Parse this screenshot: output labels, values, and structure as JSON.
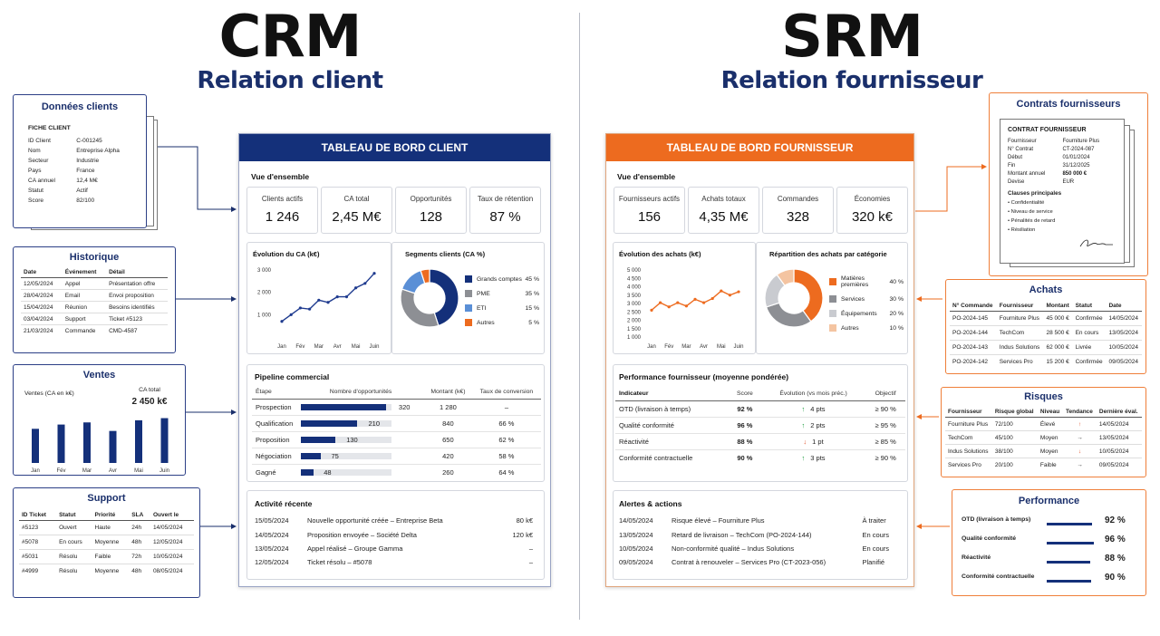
{
  "colors": {
    "navy": "#14307a",
    "orange": "#ed6b1f",
    "gray": "#8d8f94",
    "lightgray": "#c9cbd0",
    "lightblue": "#5a8fd6",
    "darkblue": "#1f3b8f",
    "green": "#1a9b3b",
    "red": "#e0522a"
  },
  "crm": {
    "title": "CRM",
    "subtitle": "Relation client",
    "donnees": {
      "title": "Données clients",
      "fiche_title": "FICHE CLIENT",
      "rows": [
        [
          "ID Client",
          "C-001245"
        ],
        [
          "Nom",
          "Entreprise Alpha"
        ],
        [
          "Secteur",
          "Industrie"
        ],
        [
          "Pays",
          "France"
        ],
        [
          "CA annuel",
          "12,4 M€"
        ],
        [
          "Statut",
          "Actif"
        ],
        [
          "Score",
          "82/100"
        ]
      ]
    },
    "historique": {
      "title": "Historique",
      "headers": [
        "Date",
        "Événement",
        "Détail"
      ],
      "rows": [
        [
          "12/05/2024",
          "Appel",
          "Présentation offre"
        ],
        [
          "28/04/2024",
          "Email",
          "Envoi proposition"
        ],
        [
          "15/04/2024",
          "Réunion",
          "Besoins identifiés"
        ],
        [
          "03/04/2024",
          "Support",
          "Ticket #5123"
        ],
        [
          "21/03/2024",
          "Commande",
          "CMD-4587"
        ]
      ]
    },
    "ventes": {
      "title": "Ventes",
      "ylabel": "Ventes (CA en k€)",
      "ca_label": "CA total",
      "ca_value": "2 450 k€"
    },
    "support": {
      "title": "Support",
      "headers": [
        "ID Ticket",
        "Statut",
        "Priorité",
        "SLA",
        "Ouvert le"
      ],
      "rows": [
        [
          "#5123",
          "Ouvert",
          "Haute",
          "24h",
          "14/05/2024"
        ],
        [
          "#5078",
          "En cours",
          "Moyenne",
          "48h",
          "12/05/2024"
        ],
        [
          "#5031",
          "Résolu",
          "Faible",
          "72h",
          "10/05/2024"
        ],
        [
          "#4999",
          "Résolu",
          "Moyenne",
          "48h",
          "08/05/2024"
        ]
      ]
    },
    "dashboard": {
      "title": "TABLEAU DE BORD CLIENT",
      "overview": "Vue d'ensemble",
      "kpis": [
        {
          "label": "Clients actifs",
          "value": "1 246"
        },
        {
          "label": "CA total",
          "value": "2,45 M€"
        },
        {
          "label": "Opportunités",
          "value": "128"
        },
        {
          "label": "Taux de rétention",
          "value": "87 %"
        }
      ],
      "chart1_title": "Évolution du CA (k€)",
      "chart2_title": "Segments clients (CA %)",
      "pipeline": {
        "title": "Pipeline commercial",
        "headers": [
          "Étape",
          "Nombre d'opportunités",
          "Montant (k€)",
          "Taux de conversion"
        ],
        "rows": [
          [
            "Prospection",
            "320",
            "1 280",
            "–"
          ],
          [
            "Qualification",
            "210",
            "840",
            "66 %"
          ],
          [
            "Proposition",
            "130",
            "650",
            "62 %"
          ],
          [
            "Négociation",
            "75",
            "420",
            "58 %"
          ],
          [
            "Gagné",
            "48",
            "260",
            "64 %"
          ]
        ]
      },
      "activity": {
        "title": "Activité récente",
        "rows": [
          [
            "15/05/2024",
            "Nouvelle opportunité créée – Entreprise Beta",
            "80 k€"
          ],
          [
            "14/05/2024",
            "Proposition envoyée – Société Delta",
            "120 k€"
          ],
          [
            "13/05/2024",
            "Appel réalisé – Groupe Gamma",
            "–"
          ],
          [
            "12/05/2024",
            "Ticket résolu – #5078",
            "–"
          ]
        ]
      }
    }
  },
  "srm": {
    "title": "SRM",
    "subtitle": "Relation fournisseur",
    "contrats": {
      "title": "Contrats fournisseurs",
      "doc_title": "CONTRAT FOURNISSEUR",
      "rows": [
        [
          "Fournisseur",
          "Fourniture Plus"
        ],
        [
          "N° Contrat",
          "CT-2024-087"
        ],
        [
          "Début",
          "01/01/2024"
        ],
        [
          "Fin",
          "31/12/2025"
        ],
        [
          "Montant annuel",
          "850 000 €"
        ],
        [
          "Devise",
          "EUR"
        ]
      ],
      "clauses_title": "Clauses principales",
      "clauses": [
        "• Confidentialité",
        "• Niveau de service",
        "• Pénalités de retard",
        "• Résiliation"
      ]
    },
    "achats": {
      "title": "Achats",
      "headers": [
        "N° Commande",
        "Fournisseur",
        "Montant",
        "Statut",
        "Date"
      ],
      "rows": [
        [
          "PO-2024-145",
          "Fourniture Plus",
          "45 000 €",
          "Confirmée",
          "14/05/2024"
        ],
        [
          "PO-2024-144",
          "TechCom",
          "28 500 €",
          "En cours",
          "13/05/2024"
        ],
        [
          "PO-2024-143",
          "Indus Solutions",
          "62 000 €",
          "Livrée",
          "10/05/2024"
        ],
        [
          "PO-2024-142",
          "Services Pro",
          "15 200 €",
          "Confirmée",
          "09/05/2024"
        ]
      ]
    },
    "risques": {
      "title": "Risques",
      "headers": [
        "Fournisseur",
        "Risque global",
        "Niveau",
        "Tendance",
        "Dernière éval."
      ],
      "rows": [
        [
          "Fourniture Plus",
          "72/100",
          "Élevé",
          "↑",
          "14/05/2024"
        ],
        [
          "TechCom",
          "45/100",
          "Moyen",
          "→",
          "13/05/2024"
        ],
        [
          "Indus Solutions",
          "38/100",
          "Moyen",
          "↓",
          "10/05/2024"
        ],
        [
          "Services Pro",
          "20/100",
          "Faible",
          "→",
          "09/05/2024"
        ]
      ]
    },
    "performance": {
      "title": "Performance",
      "rows": [
        {
          "label": "OTD (livraison à temps)",
          "value": "92 %"
        },
        {
          "label": "Qualité conformité",
          "value": "96 %"
        },
        {
          "label": "Réactivité",
          "value": "88 %"
        },
        {
          "label": "Conformité contractuelle",
          "value": "90 %"
        }
      ]
    },
    "dashboard": {
      "title": "TABLEAU DE BORD FOURNISSEUR",
      "overview": "Vue d'ensemble",
      "kpis": [
        {
          "label": "Fournisseurs actifs",
          "value": "156"
        },
        {
          "label": "Achats totaux",
          "value": "4,35 M€"
        },
        {
          "label": "Commandes",
          "value": "328"
        },
        {
          "label": "Économies",
          "value": "320 k€"
        }
      ],
      "chart1_title": "Évolution des achats (k€)",
      "chart2_title": "Répartition des achats par catégorie",
      "perf": {
        "title": "Performance fournisseur (moyenne pondérée)",
        "headers": [
          "Indicateur",
          "Score",
          "Évolution (vs mois préc.)",
          "Objectif"
        ],
        "rows": [
          [
            "OTD (livraison à temps)",
            "92 %",
            "↑",
            "4 pts",
            "≥ 90 %"
          ],
          [
            "Qualité conformité",
            "96 %",
            "↑",
            "2 pts",
            "≥ 95 %"
          ],
          [
            "Réactivité",
            "88 %",
            "↓",
            "1 pt",
            "≥ 85 %"
          ],
          [
            "Conformité contractuelle",
            "90 %",
            "↑",
            "3 pts",
            "≥ 90 %"
          ]
        ]
      },
      "alerts": {
        "title": "Alertes & actions",
        "rows": [
          [
            "14/05/2024",
            "Risque élevé – Fourniture Plus",
            "À traiter"
          ],
          [
            "13/05/2024",
            "Retard de livraison – TechCom (PO-2024-144)",
            "En cours"
          ],
          [
            "10/05/2024",
            "Non-conformité qualité – Indus Solutions",
            "En cours"
          ],
          [
            "09/05/2024",
            "Contrat à renouveler – Services Pro (CT-2023-056)",
            "Planifié"
          ]
        ]
      }
    }
  },
  "chart_data": [
    {
      "type": "line",
      "title": "Évolution du CA (k€)",
      "categories": [
        "Jan",
        "Fév",
        "Mar",
        "Avr",
        "Mai",
        "Juin"
      ],
      "x": [
        0,
        0.5,
        1,
        1.5,
        2,
        2.5,
        3,
        3.5,
        4,
        4.5,
        5
      ],
      "values": [
        700,
        1000,
        1300,
        1250,
        1650,
        1550,
        1800,
        1800,
        2200,
        2400,
        2850
      ],
      "ylim": [
        0,
        3000
      ],
      "yticks": [
        "1 000",
        "2 000",
        "3 000"
      ],
      "color": "#1f3b8f"
    },
    {
      "type": "pie",
      "title": "Segments clients (CA %)",
      "labels": [
        "Grands comptes",
        "PME",
        "ETI",
        "Autres"
      ],
      "values": [
        45,
        35,
        15,
        5
      ],
      "value_labels": [
        "45 %",
        "35 %",
        "15 %",
        "5 %"
      ],
      "colors": [
        "#14307a",
        "#8d8f94",
        "#5a8fd6",
        "#ed6b1f"
      ]
    },
    {
      "type": "bar",
      "title": "Ventes (CA en k€)",
      "categories": [
        "Jan",
        "Fév",
        "Mar",
        "Avr",
        "Mai",
        "Juin"
      ],
      "values": [
        320,
        360,
        380,
        300,
        400,
        420
      ],
      "ylim": [
        0,
        450
      ],
      "color": "#14307a"
    },
    {
      "type": "bar",
      "title": "Pipeline commercial",
      "categories": [
        "Prospection",
        "Qualification",
        "Proposition",
        "Négociation",
        "Gagné"
      ],
      "values": [
        320,
        210,
        130,
        75,
        48
      ],
      "xlim": [
        0,
        340
      ],
      "color": "#14307a"
    },
    {
      "type": "line",
      "title": "Évolution des achats (k€)",
      "categories": [
        "Jan",
        "Fév",
        "Mar",
        "Avr",
        "Mai",
        "Juin"
      ],
      "x": [
        0,
        0.5,
        1,
        1.5,
        2,
        2.5,
        3,
        3.5,
        4,
        4.5,
        5
      ],
      "values": [
        2600,
        3050,
        2800,
        3050,
        2850,
        3250,
        3050,
        3300,
        3750,
        3500,
        3700
      ],
      "ylim": [
        1000,
        5000
      ],
      "yticks": [
        "1 000",
        "1 500",
        "2 000",
        "2 500",
        "3 000",
        "3 500",
        "4 000",
        "4 500",
        "5 000"
      ],
      "color": "#ed6b1f"
    },
    {
      "type": "pie",
      "title": "Répartition des achats par catégorie",
      "labels": [
        "Matières premières",
        "Services",
        "Équipements",
        "Autres"
      ],
      "values": [
        40,
        30,
        20,
        10
      ],
      "value_labels": [
        "40 %",
        "30 %",
        "20 %",
        "10 %"
      ],
      "colors": [
        "#ed6b1f",
        "#8d8f94",
        "#c9cbd0",
        "#f4c4a1"
      ]
    },
    {
      "type": "bar",
      "title": "Performance",
      "categories": [
        "OTD (livraison à temps)",
        "Qualité conformité",
        "Réactivité",
        "Conformité contractuelle"
      ],
      "values": [
        92,
        96,
        88,
        90
      ],
      "xlim": [
        0,
        100
      ],
      "color": "#14307a"
    }
  ]
}
